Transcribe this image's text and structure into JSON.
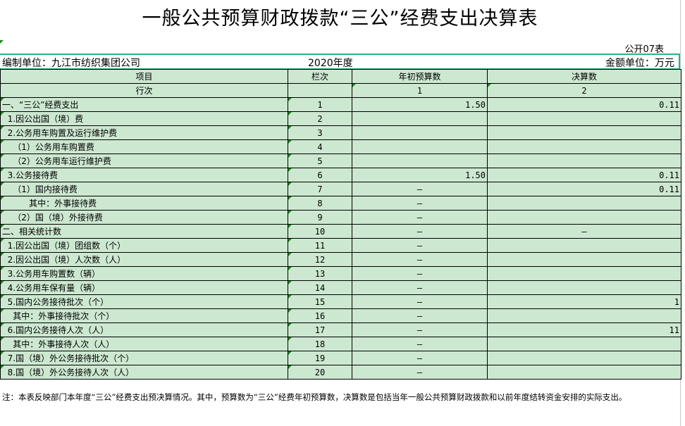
{
  "title": "一般公共预算财政拨款“三公”经费支出决算表",
  "sheet_no": "公开07表",
  "unit": "编制单位：九江市纺织集团公司",
  "year": "2020年度",
  "currency": "金额单位：万元",
  "headers": {
    "item": "项目",
    "col": "栏次",
    "budget": "年初预算数",
    "final": "决算数",
    "row_label": "行次",
    "budget_no": "1",
    "final_no": "2"
  },
  "rows": [
    {
      "item": "一、“三公”经费支出",
      "no": "1",
      "budget": "1.50",
      "final": "0.11"
    },
    {
      "item": "  1.因公出国（境）费",
      "no": "2",
      "budget": "",
      "final": ""
    },
    {
      "item": "  2.公务用车购置及运行维护费",
      "no": "3",
      "budget": "",
      "final": ""
    },
    {
      "item": "    （1）公务用车购置费",
      "no": "4",
      "budget": "",
      "final": ""
    },
    {
      "item": "    （2）公务用车运行维护费",
      "no": "5",
      "budget": "",
      "final": ""
    },
    {
      "item": "  3.公务接待费",
      "no": "6",
      "budget": "1.50",
      "final": "0.11"
    },
    {
      "item": "    （1）国内接待费",
      "no": "7",
      "budget": "–",
      "final": "0.11"
    },
    {
      "item": "          其中：外事接待费",
      "no": "8",
      "budget": "–",
      "final": ""
    },
    {
      "item": "    （2）国（境）外接待费",
      "no": "9",
      "budget": "–",
      "final": ""
    },
    {
      "item": "二、相关统计数",
      "no": "10",
      "budget": "–",
      "final": "–"
    },
    {
      "item": "  1.因公出国（境）团组数（个）",
      "no": "11",
      "budget": "–",
      "final": ""
    },
    {
      "item": "  2.因公出国（境）人次数（人）",
      "no": "12",
      "budget": "–",
      "final": ""
    },
    {
      "item": "  3.公务用车购置数（辆）",
      "no": "13",
      "budget": "–",
      "final": ""
    },
    {
      "item": "  4.公务用车保有量（辆）",
      "no": "14",
      "budget": "–",
      "final": ""
    },
    {
      "item": "  5.国内公务接待批次（个）",
      "no": "15",
      "budget": "–",
      "final": "1"
    },
    {
      "item": "    其中：外事接待批次（个）",
      "no": "16",
      "budget": "–",
      "final": ""
    },
    {
      "item": "  6.国内公务接待人次（人）",
      "no": "17",
      "budget": "–",
      "final": "11"
    },
    {
      "item": "    其中：外事接待人次（人）",
      "no": "18",
      "budget": "–",
      "final": ""
    },
    {
      "item": "  7.国（境）外公务接待批次（个）",
      "no": "19",
      "budget": "–",
      "final": ""
    },
    {
      "item": "  8.国（境）外公务接待人次（人）",
      "no": "20",
      "budget": "–",
      "final": ""
    }
  ],
  "note": "注：本表反映部门本年度“三公”经费支出预决算情况。其中，预算数为“三公”经费年初预算数，决算数是包括当年一般公共预算财政拨款和以前年度结转资金安排的实际支出。"
}
